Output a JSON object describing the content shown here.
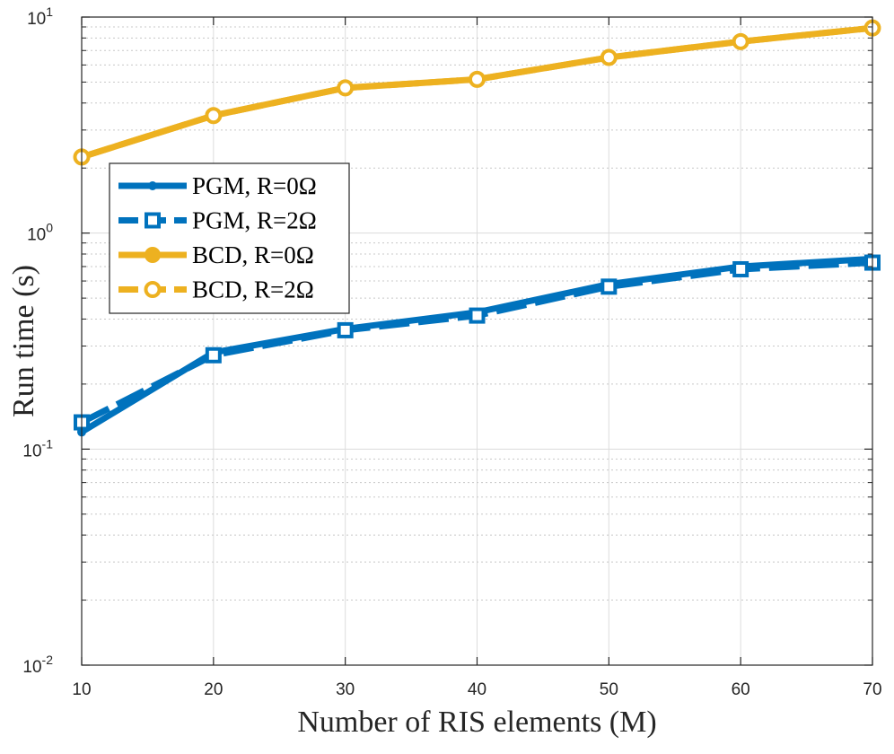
{
  "chart_data": {
    "type": "line",
    "title": "",
    "xlabel": "Number of RIS elements (M)",
    "ylabel": "Run time (s)",
    "yscale": "log",
    "xlim": [
      10,
      70
    ],
    "ylim": [
      0.01,
      10
    ],
    "x_ticks": [
      "10",
      "20",
      "30",
      "40",
      "50",
      "60",
      "70"
    ],
    "y_ticks": [
      {
        "base": "10",
        "exp": "-2",
        "value": 0.01
      },
      {
        "base": "10",
        "exp": "-1",
        "value": 0.1
      },
      {
        "base": "10",
        "exp": "0",
        "value": 1
      },
      {
        "base": "10",
        "exp": "1",
        "value": 10
      }
    ],
    "grid": true,
    "legend_position": "upper-left",
    "x": [
      10,
      20,
      30,
      40,
      50,
      60,
      70
    ],
    "series": [
      {
        "name": "PGM, R=0Ω",
        "color": "#0072BD",
        "dash": "solid",
        "marker": "point",
        "values": [
          0.12,
          0.28,
          0.36,
          0.43,
          0.58,
          0.7,
          0.76
        ]
      },
      {
        "name": "PGM, R=2Ω",
        "color": "#0072BD",
        "dash": "dashed",
        "marker": "square",
        "values": [
          0.133,
          0.272,
          0.355,
          0.415,
          0.565,
          0.68,
          0.73
        ]
      },
      {
        "name": "BCD, R=0Ω",
        "color": "#EDB120",
        "dash": "solid",
        "marker": "filled-circle",
        "values": [
          2.25,
          3.5,
          4.7,
          5.15,
          6.5,
          7.7,
          8.9
        ]
      },
      {
        "name": "BCD, R=2Ω",
        "color": "#EDB120",
        "dash": "dashed",
        "marker": "open-circle",
        "values": [
          2.25,
          3.5,
          4.7,
          5.15,
          6.5,
          7.7,
          8.9
        ]
      }
    ]
  }
}
